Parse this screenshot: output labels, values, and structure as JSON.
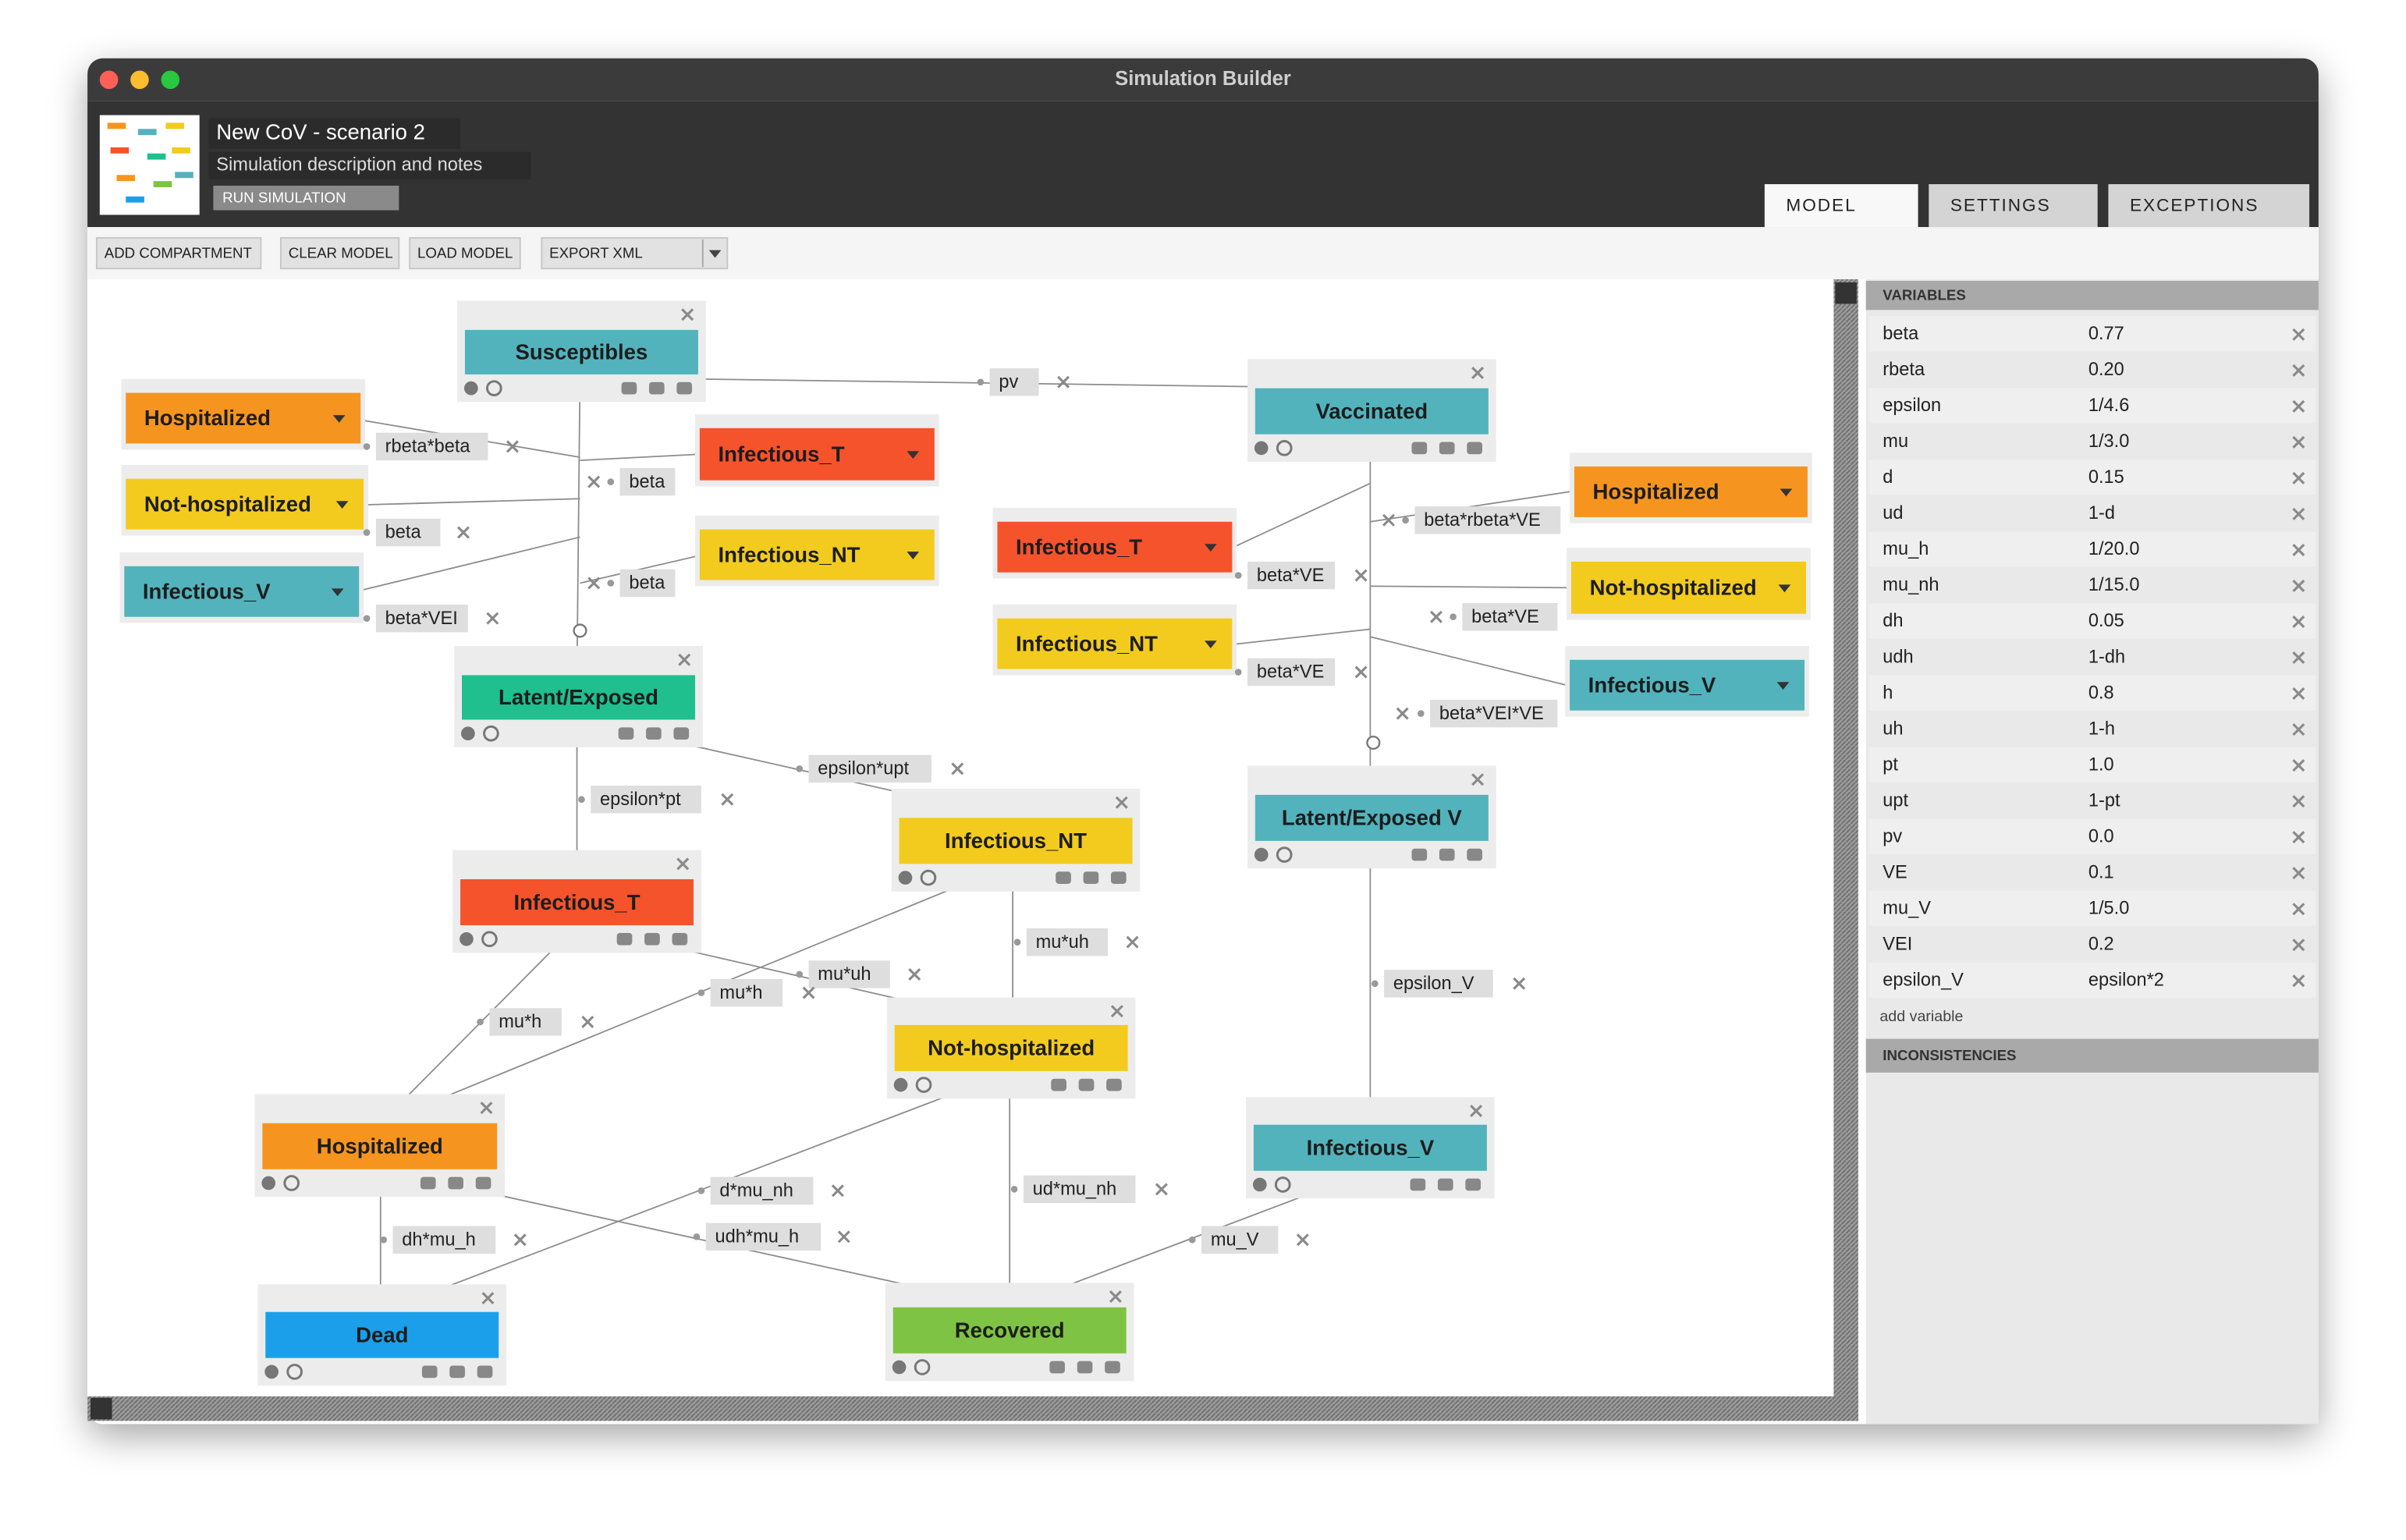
{
  "window_title": "Simulation Builder",
  "header": {
    "project_name": "New CoV - scenario 2",
    "description": "Simulation description and notes",
    "run_button": "RUN SIMULATION"
  },
  "tabs": [
    "MODEL",
    "SETTINGS",
    "EXCEPTIONS"
  ],
  "toolbar": [
    "ADD COMPARTMENT",
    "CLEAR MODEL",
    "LOAD MODEL",
    "EXPORT XML"
  ],
  "compartments": [
    {
      "label": "Susceptibles",
      "color": "#52b3bd"
    },
    {
      "label": "Vaccinated",
      "color": "#52b3bd"
    },
    {
      "label": "Latent/Exposed",
      "color": "#1fbf8e"
    },
    {
      "label": "Latent/Exposed V",
      "color": "#52b3bd"
    },
    {
      "label": "Infectious_NT",
      "color": "#f2cb1e"
    },
    {
      "label": "Infectious_T",
      "color": "#f5532c"
    },
    {
      "label": "Not-hospitalized",
      "color": "#f2cb1e"
    },
    {
      "label": "Hospitalized",
      "color": "#f5951f"
    },
    {
      "label": "Infectious_V",
      "color": "#52b3bd"
    },
    {
      "label": "Dead",
      "color": "#1b9feb"
    },
    {
      "label": "Recovered",
      "color": "#7ec343"
    }
  ],
  "references": [
    {
      "label": "Hospitalized",
      "color": "#f5951f"
    },
    {
      "label": "Not-hospitalized",
      "color": "#f2cb1e"
    },
    {
      "label": "Infectious_V",
      "color": "#52b3bd"
    },
    {
      "label": "Infectious_T",
      "color": "#f5532c"
    },
    {
      "label": "Infectious_NT",
      "color": "#f2cb1e"
    },
    {
      "label": "Infectious_T",
      "color": "#f5532c"
    },
    {
      "label": "Infectious_NT",
      "color": "#f2cb1e"
    },
    {
      "label": "Hospitalized",
      "color": "#f5951f"
    },
    {
      "label": "Not-hospitalized",
      "color": "#f2cb1e"
    },
    {
      "label": "Infectious_V",
      "color": "#52b3bd"
    }
  ],
  "transitions": [
    "pv",
    "rbeta*beta",
    "beta",
    "beta",
    "beta",
    "beta*VEI",
    "epsilon*upt",
    "epsilon*pt",
    "beta*rbeta*VE",
    "beta*VE",
    "beta*VE",
    "beta*VE",
    "beta*VEI*VE",
    "mu*uh",
    "mu*uh",
    "mu*h",
    "mu*h",
    "epsilon_V",
    "d*mu_nh",
    "ud*mu_nh",
    "udh*mu_h",
    "dh*mu_h",
    "mu_V"
  ],
  "variables": {
    "title": "VARIABLES",
    "rows": [
      [
        "beta",
        "0.77"
      ],
      [
        "rbeta",
        "0.20"
      ],
      [
        "epsilon",
        "1/4.6"
      ],
      [
        "mu",
        "1/3.0"
      ],
      [
        "d",
        "0.15"
      ],
      [
        "ud",
        "1-d"
      ],
      [
        "mu_h",
        "1/20.0"
      ],
      [
        "mu_nh",
        "1/15.0"
      ],
      [
        "dh",
        "0.05"
      ],
      [
        "udh",
        "1-dh"
      ],
      [
        "h",
        "0.8"
      ],
      [
        "uh",
        "1-h"
      ],
      [
        "pt",
        "1.0"
      ],
      [
        "upt",
        "1-pt"
      ],
      [
        "pv",
        "0.0"
      ],
      [
        "VE",
        "0.1"
      ],
      [
        "mu_V",
        "1/5.0"
      ],
      [
        "VEI",
        "0.2"
      ],
      [
        "epsilon_V",
        "epsilon*2"
      ]
    ],
    "add_label": "add variable"
  },
  "inconsistencies_title": "INCONSISTENCIES"
}
